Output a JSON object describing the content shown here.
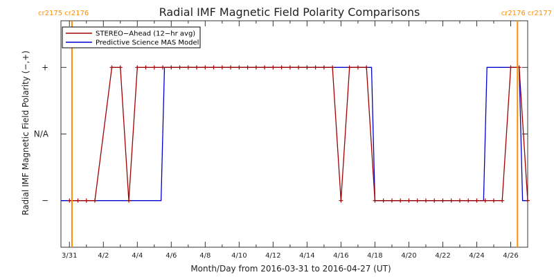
{
  "chart_data": {
    "type": "line",
    "title": "Radial IMF Magnetic Field Polarity Comparisons",
    "xlabel": "Month/Day from 2016-03-31 to 2016-04-27 (UT)",
    "ylabel": "Radial IMF Magnetic Field Polarity (−,+)",
    "xlim_days": [
      -0.5,
      27.0
    ],
    "ylim": [
      -1.7,
      1.7
    ],
    "x_ticks": [
      {
        "day": 0,
        "label": "3/31"
      },
      {
        "day": 2,
        "label": "4/2"
      },
      {
        "day": 4,
        "label": "4/4"
      },
      {
        "day": 6,
        "label": "4/6"
      },
      {
        "day": 8,
        "label": "4/8"
      },
      {
        "day": 10,
        "label": "4/10"
      },
      {
        "day": 12,
        "label": "4/12"
      },
      {
        "day": 14,
        "label": "4/14"
      },
      {
        "day": 16,
        "label": "4/16"
      },
      {
        "day": 18,
        "label": "4/18"
      },
      {
        "day": 20,
        "label": "4/20"
      },
      {
        "day": 22,
        "label": "4/22"
      },
      {
        "day": 24,
        "label": "4/24"
      },
      {
        "day": 26,
        "label": "4/26"
      }
    ],
    "y_ticks": [
      {
        "value": 1,
        "label": "+"
      },
      {
        "value": 0,
        "label": "N/A"
      },
      {
        "value": -1,
        "label": "−"
      }
    ],
    "carrington_markers": [
      {
        "day": 0.15,
        "label": "cr2175 cr2176",
        "side": "left"
      },
      {
        "day": 26.4,
        "label": "cr2176 cr2177",
        "side": "right"
      }
    ],
    "marker_color": "#ff8c00",
    "series": [
      {
        "name": "STEREO−Ahead (12−hr avg)",
        "color": "#a00000",
        "markers": true,
        "points": [
          [
            0.0,
            -1
          ],
          [
            0.5,
            -1
          ],
          [
            1.0,
            -1
          ],
          [
            1.5,
            -1
          ],
          [
            2.5,
            1
          ],
          [
            3.0,
            1
          ],
          [
            3.5,
            -1
          ],
          [
            4.0,
            1
          ],
          [
            4.5,
            1
          ],
          [
            5.0,
            1
          ],
          [
            5.5,
            1
          ],
          [
            6.0,
            1
          ],
          [
            6.5,
            1
          ],
          [
            7.0,
            1
          ],
          [
            7.5,
            1
          ],
          [
            8.0,
            1
          ],
          [
            8.5,
            1
          ],
          [
            9.0,
            1
          ],
          [
            9.5,
            1
          ],
          [
            10.0,
            1
          ],
          [
            10.5,
            1
          ],
          [
            11.0,
            1
          ],
          [
            11.5,
            1
          ],
          [
            12.0,
            1
          ],
          [
            12.5,
            1
          ],
          [
            13.0,
            1
          ],
          [
            13.5,
            1
          ],
          [
            14.0,
            1
          ],
          [
            14.5,
            1
          ],
          [
            15.0,
            1
          ],
          [
            15.5,
            1
          ],
          [
            16.0,
            -1
          ],
          [
            16.5,
            1
          ],
          [
            17.0,
            1
          ],
          [
            17.5,
            1
          ],
          [
            18.0,
            -1
          ],
          [
            18.5,
            -1
          ],
          [
            19.0,
            -1
          ],
          [
            19.5,
            -1
          ],
          [
            20.0,
            -1
          ],
          [
            20.5,
            -1
          ],
          [
            21.0,
            -1
          ],
          [
            21.5,
            -1
          ],
          [
            22.0,
            -1
          ],
          [
            22.5,
            -1
          ],
          [
            23.0,
            -1
          ],
          [
            23.5,
            -1
          ],
          [
            24.0,
            -1
          ],
          [
            24.5,
            -1
          ],
          [
            25.0,
            -1
          ],
          [
            25.5,
            -1
          ],
          [
            26.0,
            1
          ],
          [
            26.5,
            1
          ],
          [
            27.0,
            -1
          ]
        ]
      },
      {
        "name": "Predictive Science MAS Model",
        "color": "#0000cc",
        "markers": false,
        "points": [
          [
            -0.5,
            -1
          ],
          [
            5.4,
            -1
          ],
          [
            5.6,
            1
          ],
          [
            17.8,
            1
          ],
          [
            18.0,
            -1
          ],
          [
            24.4,
            -1
          ],
          [
            24.6,
            1
          ],
          [
            26.5,
            1
          ],
          [
            26.7,
            -1
          ],
          [
            27.0,
            -1
          ]
        ]
      }
    ]
  }
}
